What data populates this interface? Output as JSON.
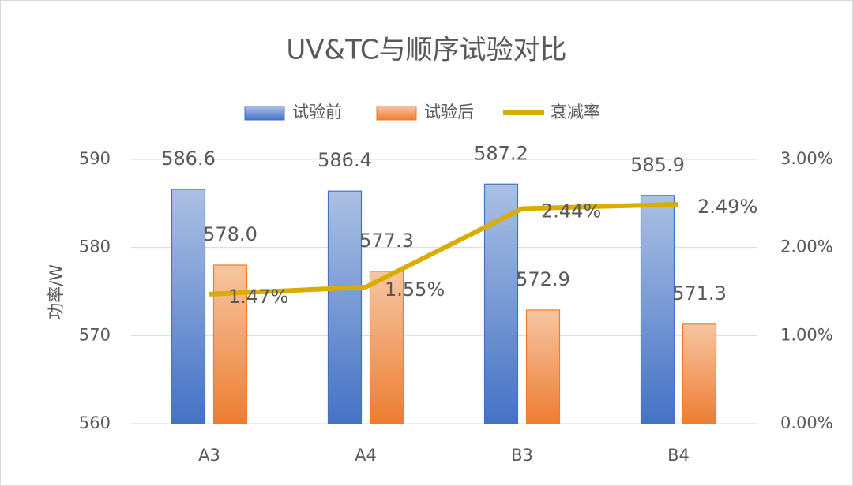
{
  "chart_data": {
    "type": "bar-line",
    "title": "UV&TC与顺序试验对比",
    "categories": [
      "A3",
      "A4",
      "B3",
      "B4"
    ],
    "ylabel": "功率/W",
    "ylim": [
      560,
      590
    ],
    "yticks": [
      560,
      570,
      580,
      590
    ],
    "y2lim": [
      0,
      3
    ],
    "y2ticks": [
      {
        "value": 0,
        "label": "0.00%"
      },
      {
        "value": 1,
        "label": "1.00%"
      },
      {
        "value": 2,
        "label": "2.00%"
      },
      {
        "value": 3,
        "label": "3.00%"
      }
    ],
    "grid": true,
    "series": [
      {
        "name": "试验前",
        "type": "bar",
        "color": "#4472c4",
        "values": [
          586.6,
          586.4,
          587.2,
          585.9
        ]
      },
      {
        "name": "试验后",
        "type": "bar",
        "color": "#ed7d31",
        "values": [
          578.0,
          577.3,
          572.9,
          571.3
        ],
        "value_labels": [
          "578.0",
          "577.3",
          "572.9",
          "571.3"
        ]
      },
      {
        "name": "衰减率",
        "type": "line",
        "axis": "y2",
        "color": "#d9ad00",
        "values": [
          1.47,
          1.55,
          2.44,
          2.49
        ],
        "value_labels": [
          "1.47%",
          "1.55%",
          "2.44%",
          "2.49%"
        ]
      }
    ]
  }
}
